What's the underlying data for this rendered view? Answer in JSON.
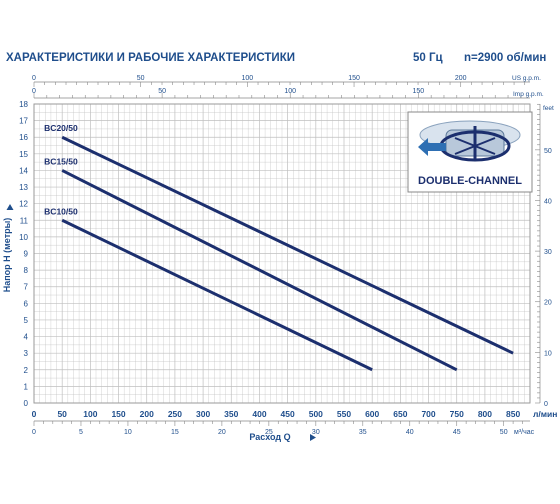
{
  "header": {
    "title": "ХАРАКТЕРИСТИКИ И РАБОЧИЕ ХАРАКТЕРИСТИКИ",
    "freq": "50 Гц",
    "speed": "n=2900 об/мин"
  },
  "badge": {
    "label": "DOUBLE-CHANNEL"
  },
  "colors": {
    "curve": "#1c2f6e",
    "text": "#1f4e8c",
    "grid": "#bfbfbf",
    "frame": "#9a9a9a"
  },
  "chart_data": {
    "type": "line",
    "xlabel": "Расход Q",
    "ylabel": "Напор H (метры)",
    "x_unit": "л/мин",
    "xlim": [
      0,
      880
    ],
    "ylim": [
      0,
      18
    ],
    "grid": true,
    "x_ticks": [
      0,
      50,
      100,
      150,
      200,
      250,
      300,
      350,
      400,
      450,
      500,
      550,
      600,
      650,
      700,
      750,
      800,
      850
    ],
    "y_ticks": [
      0,
      1,
      2,
      3,
      4,
      5,
      6,
      7,
      8,
      9,
      10,
      11,
      12,
      13,
      14,
      15,
      16,
      17,
      18
    ],
    "secondary_axes": {
      "top_us": {
        "unit": "US g.p.m.",
        "ticks": [
          0,
          50,
          100,
          150,
          200
        ]
      },
      "top_imp": {
        "unit": "Imp g.p.m.",
        "ticks": [
          0,
          50,
          100,
          150
        ]
      },
      "bottom_m3": {
        "unit": "м³/час",
        "ticks": [
          0,
          5,
          10,
          15,
          20,
          25,
          30,
          35,
          40,
          45,
          50
        ]
      },
      "right_feet": {
        "unit": "feet",
        "ticks": [
          0,
          10,
          20,
          30,
          40,
          50
        ]
      }
    },
    "series": [
      {
        "name": "BC20/50",
        "x": [
          50,
          850
        ],
        "y": [
          16,
          3
        ]
      },
      {
        "name": "BC15/50",
        "x": [
          50,
          750
        ],
        "y": [
          14,
          2
        ]
      },
      {
        "name": "BC10/50",
        "x": [
          50,
          600
        ],
        "y": [
          11,
          2
        ]
      }
    ]
  }
}
